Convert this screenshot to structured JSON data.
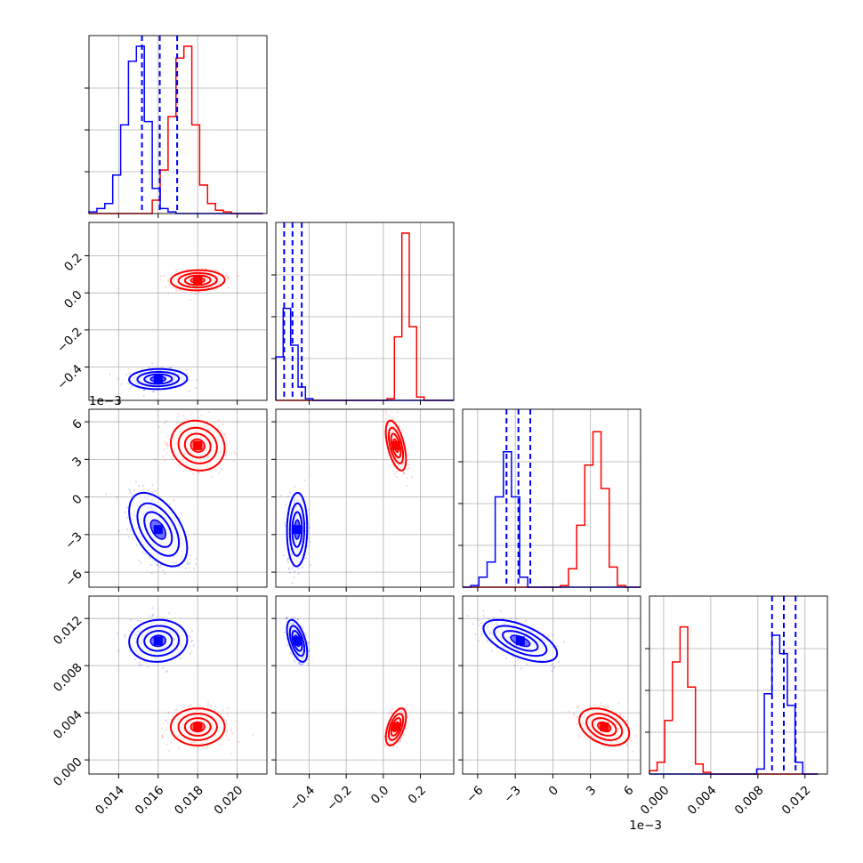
{
  "chart_data": {
    "type": "corner",
    "title": "",
    "grid": true,
    "series_colors": {
      "series_a": "#0000ff",
      "series_b": "#ff0000"
    },
    "axes": [
      {
        "range": [
          0.0125,
          0.0215
        ],
        "ticks": [
          0.014,
          0.016,
          0.018,
          0.02
        ],
        "tick_labels": [
          "0.014",
          "0.016",
          "0.018",
          "0.020"
        ],
        "offset_label": ""
      },
      {
        "range": [
          -0.58,
          0.38
        ],
        "ticks": [
          -0.4,
          -0.2,
          0.0,
          0.2
        ],
        "tick_labels": [
          "−0.4",
          "−0.2",
          "0.0",
          "0.2"
        ],
        "offset_label": ""
      },
      {
        "range": [
          -7.2,
          7.0
        ],
        "ticks": [
          -6,
          -3,
          0,
          3,
          6
        ],
        "tick_labels": [
          "−6",
          "−3",
          "0",
          "3",
          "6"
        ],
        "offset_label": "1e−3"
      },
      {
        "range": [
          -0.0012,
          0.0139
        ],
        "ticks": [
          0.0,
          0.004,
          0.008,
          0.012
        ],
        "tick_labels": [
          "0.000",
          "0.004",
          "0.008",
          "0.012"
        ],
        "offset_label": ""
      }
    ],
    "marginals": [
      {
        "bins_from": 0.0125,
        "bin_width": 0.0004,
        "series_a": [
          0.01,
          0.03,
          0.06,
          0.23,
          0.53,
          0.91,
          1.0,
          0.55,
          0.15,
          0.03,
          0.01,
          0,
          0,
          0,
          0,
          0,
          0,
          0,
          0,
          0,
          0,
          0
        ],
        "series_b": [
          0,
          0,
          0,
          0,
          0,
          0,
          0,
          0,
          0.08,
          0.26,
          0.58,
          0.93,
          1.0,
          0.53,
          0.17,
          0.06,
          0.02,
          0.01,
          0,
          0,
          0,
          0
        ],
        "quantiles_a": [
          0.01518,
          0.01608,
          0.01696
        ]
      },
      {
        "bins_from": -0.58,
        "bin_width": 0.04,
        "series_a": [
          0.26,
          0.55,
          0.33,
          0.08,
          0.01,
          0,
          0,
          0,
          0,
          0,
          0,
          0,
          0,
          0,
          0,
          0,
          0,
          0,
          0,
          0,
          0,
          0,
          0,
          0
        ],
        "series_b": [
          0,
          0,
          0,
          0,
          0,
          0,
          0,
          0,
          0,
          0,
          0,
          0,
          0,
          0,
          0,
          0.01,
          0.38,
          1.0,
          0.44,
          0.02,
          0,
          0,
          0,
          0
        ],
        "quantiles_a": [
          -0.535,
          -0.49,
          -0.44
        ]
      },
      {
        "bins_from": -7.2,
        "bin_width": 0.65,
        "series_a": [
          0,
          0.01,
          0.06,
          0.15,
          0.54,
          0.81,
          0.54,
          0.06,
          0,
          0,
          0,
          0,
          0,
          0,
          0,
          0,
          0,
          0,
          0,
          0,
          0,
          0
        ],
        "series_b": [
          0,
          0,
          0,
          0,
          0,
          0,
          0,
          0,
          0,
          0,
          0,
          0,
          0.01,
          0.11,
          0.37,
          0.73,
          0.93,
          0.59,
          0.12,
          0.01,
          0,
          0
        ],
        "quantiles_a": [
          -3.7,
          -2.75,
          -1.8
        ]
      },
      {
        "bins_from": -0.0012,
        "bin_width": 0.00065,
        "series_a": [
          0,
          0,
          0,
          0,
          0,
          0,
          0,
          0,
          0,
          0,
          0,
          0,
          0,
          0,
          0.03,
          0.48,
          0.83,
          0.72,
          0.41,
          0.07,
          0,
          0
        ],
        "series_b": [
          0.02,
          0.07,
          0.32,
          0.67,
          0.88,
          0.52,
          0.06,
          0.01,
          0,
          0,
          0,
          0,
          0,
          0,
          0,
          0,
          0,
          0,
          0,
          0,
          0,
          0
        ],
        "quantiles_a": [
          0.0092,
          0.0102,
          0.0112
        ]
      }
    ],
    "series_a_mean": [
      0.016,
      -0.465,
      -2.6,
      0.0101
    ],
    "series_a_sd": [
      0.0007,
      0.026,
      1.4,
      0.00085
    ],
    "series_a_corr": [
      [
        0,
        0,
        0,
        0
      ],
      [
        0.05,
        0,
        0,
        0
      ],
      [
        -0.5,
        0.05,
        0,
        0
      ],
      [
        0.05,
        -0.55,
        -0.6,
        0
      ]
    ],
    "series_b_mean": [
      0.018,
      0.068,
      4.1,
      0.0028
    ],
    "series_b_sd": [
      0.00065,
      0.026,
      0.95,
      0.00075
    ],
    "series_b_corr": [
      [
        0,
        0,
        0,
        0
      ],
      [
        0.05,
        0,
        0,
        0
      ],
      [
        -0.1,
        -0.55,
        0,
        0
      ],
      [
        0.0,
        0.55,
        -0.35,
        0
      ]
    ]
  }
}
